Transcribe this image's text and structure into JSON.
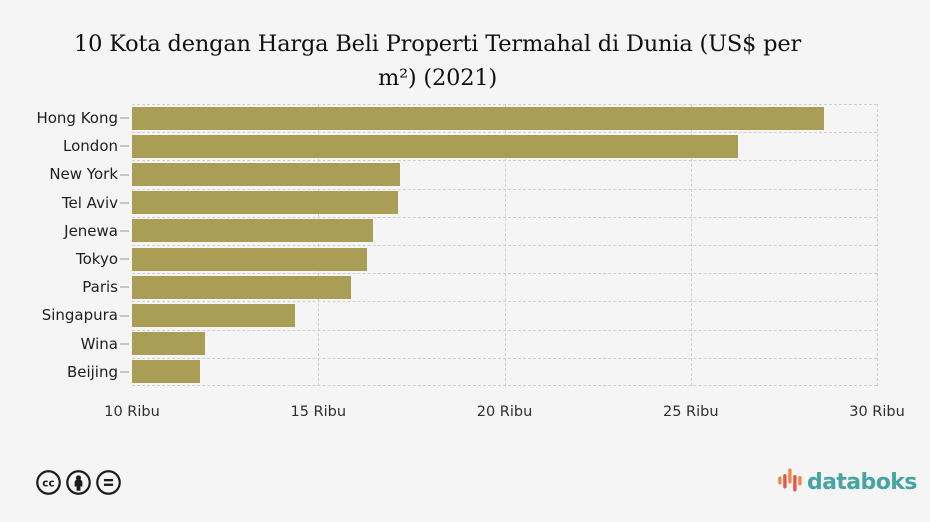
{
  "title": "10 Kota dengan Harga Beli Properti Termahal di Dunia (US$ per m²) (2021)",
  "title_lines": [
    "10 Kota dengan Harga Beli Properti Termahal di Dunia (US$ per",
    "m²) (2021)"
  ],
  "chart_data": {
    "type": "bar",
    "orientation": "horizontal",
    "title": "10 Kota dengan Harga Beli Properti Termahal di Dunia (US$ per m²) (2021)",
    "categories": [
      "Hong Kong",
      "London",
      "New York",
      "Tel Aviv",
      "Jenewa",
      "Tokyo",
      "Paris",
      "Singapura",
      "Wina",
      "Beijing"
    ],
    "values": [
      28570,
      26262,
      17191,
      17149,
      16467,
      16322,
      15867,
      14373,
      11967,
      11829
    ],
    "unit": "US$ per m²",
    "xlim": [
      10000,
      30000
    ],
    "x_ticks": [
      {
        "value": 10000,
        "label": "10 Ribu"
      },
      {
        "value": 15000,
        "label": "15 Ribu"
      },
      {
        "value": 20000,
        "label": "20 Ribu"
      },
      {
        "value": 25000,
        "label": "25 Ribu"
      },
      {
        "value": 30000,
        "label": "30 Ribu"
      }
    ],
    "grid": "dashed",
    "legend": "none",
    "bar_color": "#aa9d55"
  },
  "footer": {
    "license_icons": [
      "cc-icon",
      "cc-by-icon",
      "cc-nd-icon"
    ],
    "brand": "databoks"
  },
  "colors": {
    "background": "#f5f5f5",
    "bar": "#aa9d55",
    "gridline": "#cfcfcf",
    "title_text": "#101010",
    "label_text": "#1e1e1e",
    "axis_text": "#2e2e2e",
    "license_icon": "#1c1c1c",
    "brand_teal": "#46a5a2",
    "logo_orange": "#f0883f",
    "logo_red": "#e2584c"
  }
}
